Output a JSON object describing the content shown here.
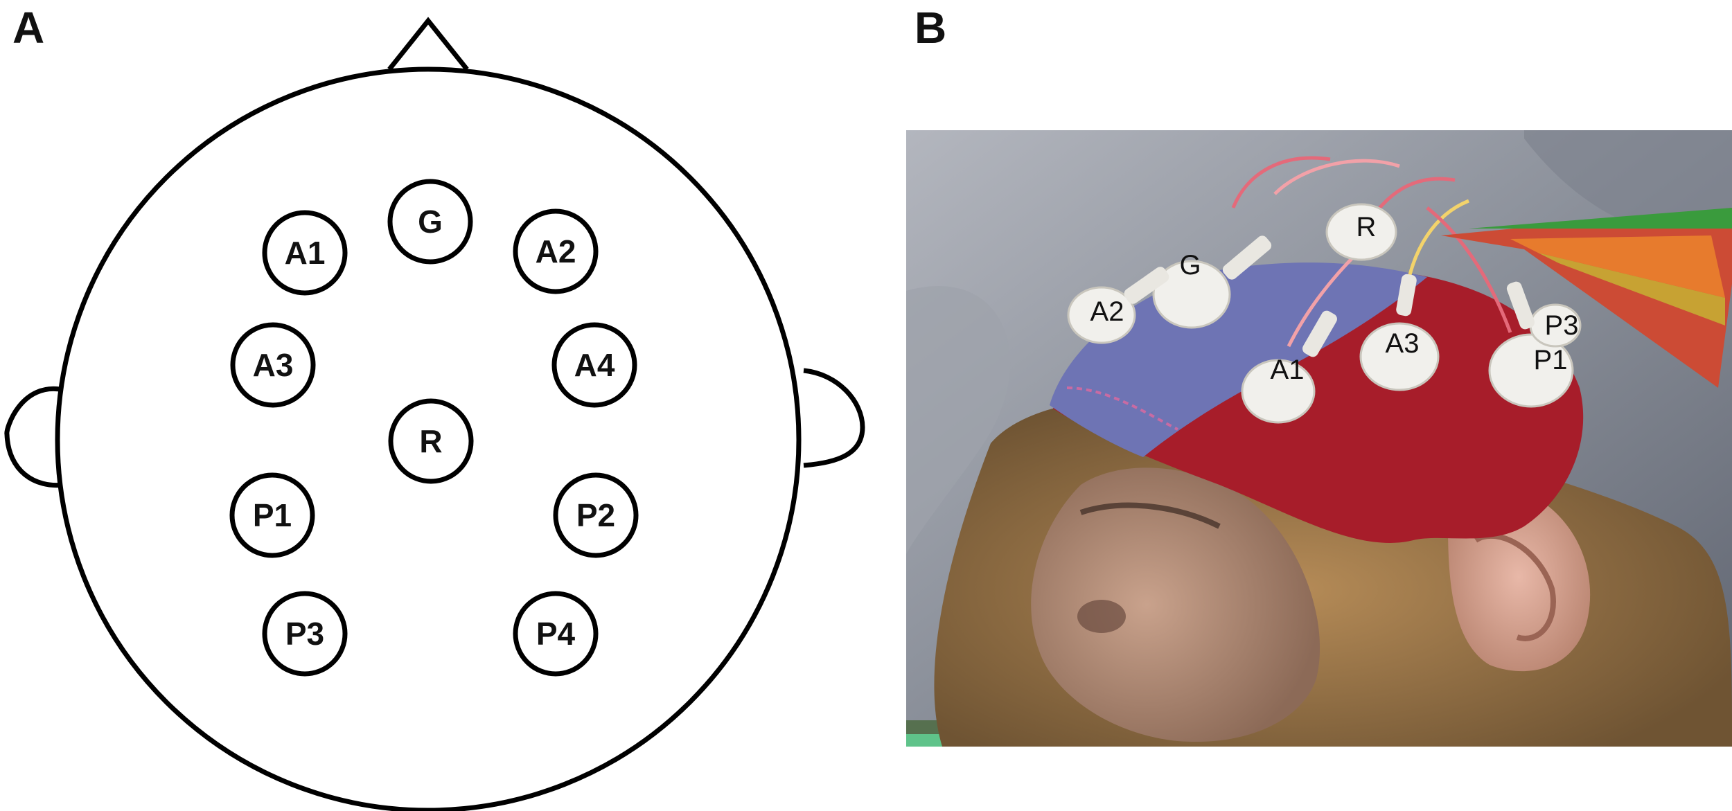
{
  "panels": {
    "a_letter": "A",
    "b_letter": "B"
  },
  "head_map": {
    "electrodes": [
      {
        "id": "G",
        "label": "G"
      },
      {
        "id": "A1",
        "label": "A1"
      },
      {
        "id": "A2",
        "label": "A2"
      },
      {
        "id": "A3",
        "label": "A3"
      },
      {
        "id": "A4",
        "label": "A4"
      },
      {
        "id": "R",
        "label": "R"
      },
      {
        "id": "P1",
        "label": "P1"
      },
      {
        "id": "P2",
        "label": "P2"
      },
      {
        "id": "P3",
        "label": "P3"
      },
      {
        "id": "P4",
        "label": "P4"
      }
    ]
  },
  "photo": {
    "labels": [
      {
        "id": "A2",
        "label": "A2"
      },
      {
        "id": "G",
        "label": "G"
      },
      {
        "id": "R",
        "label": "R"
      },
      {
        "id": "A1",
        "label": "A1"
      },
      {
        "id": "A3",
        "label": "A3"
      },
      {
        "id": "P3",
        "label": "P3"
      },
      {
        "id": "P1",
        "label": "P1"
      }
    ]
  },
  "colors": {
    "cap_blue": "#6e74b4",
    "cap_red": "#a71d2a",
    "fur": "#a07c4c",
    "background_gray": "#8d929c"
  }
}
